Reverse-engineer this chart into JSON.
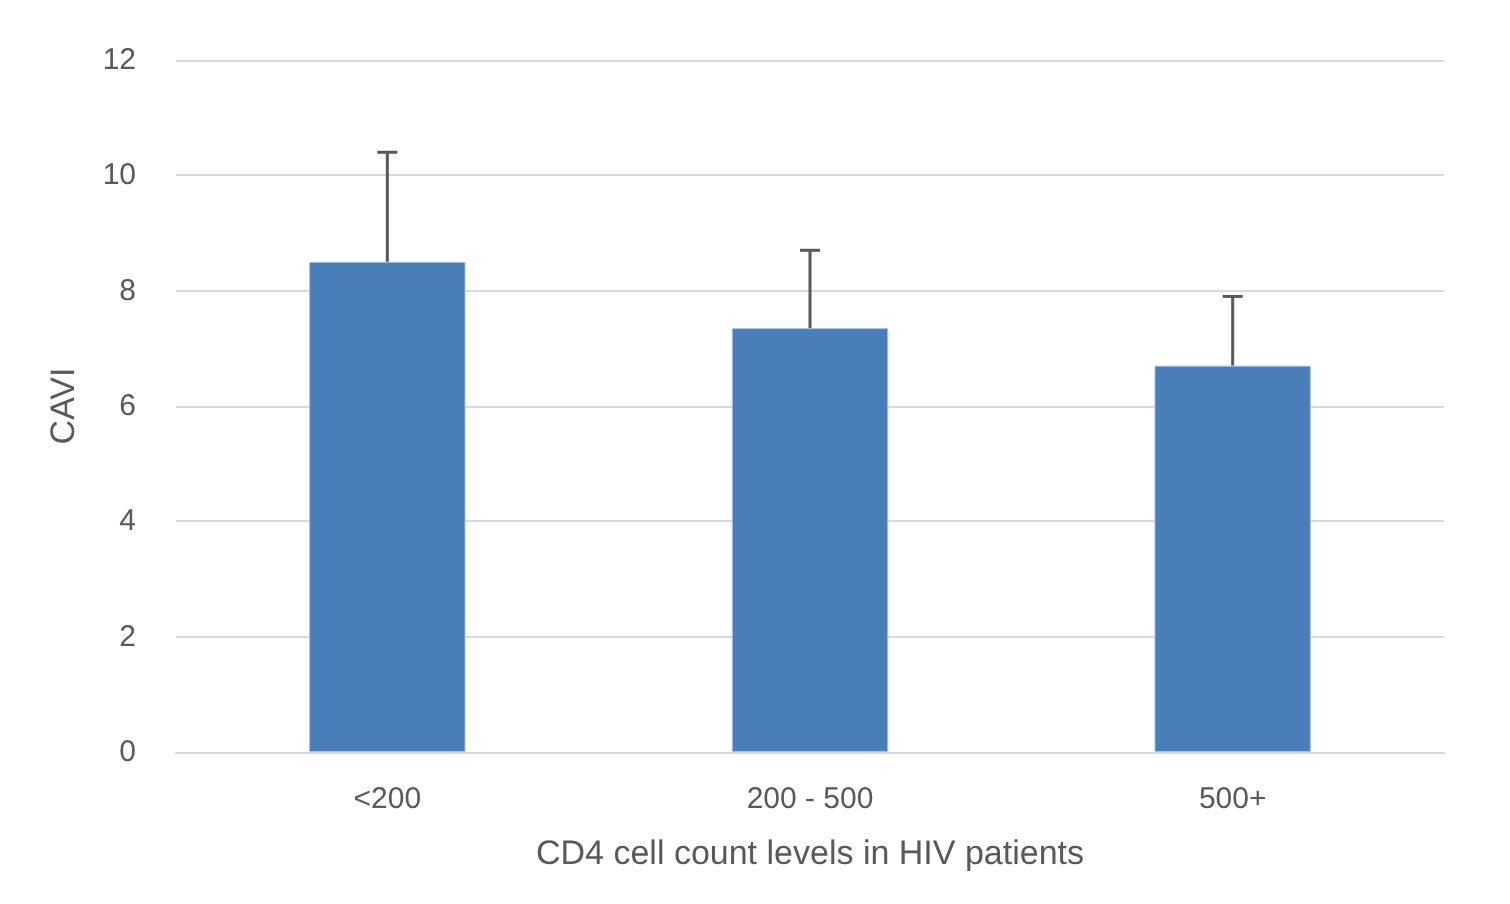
{
  "chart_data": {
    "type": "bar",
    "xlabel": "CD4 cell count levels in HIV patients",
    "ylabel": "CAVI",
    "categories": [
      "<200",
      "200 - 500",
      "500+"
    ],
    "values": [
      8.5,
      7.35,
      6.7
    ],
    "errors": [
      [
        8.5,
        10.4
      ],
      [
        7.35,
        8.7
      ],
      [
        6.7,
        7.9
      ]
    ],
    "color": "#4a7ebb",
    "ylim": [
      0,
      12
    ],
    "yticks": [
      0,
      2,
      4,
      6,
      8,
      10,
      12
    ],
    "grid": "y"
  }
}
